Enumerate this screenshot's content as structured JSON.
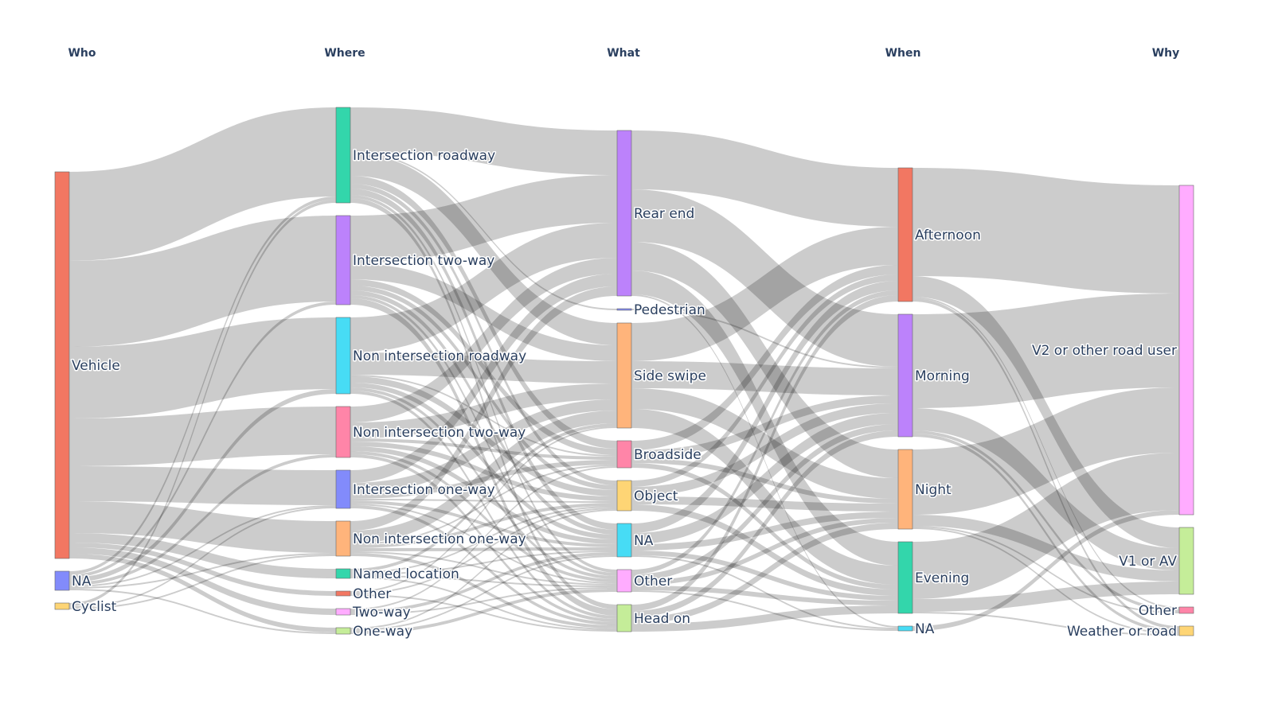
{
  "chart_data": {
    "type": "sankey",
    "title": "",
    "columns": [
      "Who",
      "Where",
      "What",
      "When",
      "Why"
    ],
    "nodes": [
      {
        "id": "who_vehicle",
        "label": "Vehicle",
        "col": 0,
        "color": "#EF553B"
      },
      {
        "id": "who_na",
        "label": "NA",
        "col": 0,
        "color": "#636efa"
      },
      {
        "id": "who_cyclist",
        "label": "Cyclist",
        "col": 0,
        "color": "#FECB52"
      },
      {
        "id": "wh_ir",
        "label": "Intersection roadway",
        "col": 1,
        "color": "#00cc96"
      },
      {
        "id": "wh_it",
        "label": "Intersection two-way",
        "col": 1,
        "color": "#ab63fa"
      },
      {
        "id": "wh_nr",
        "label": "Non intersection roadway",
        "col": 1,
        "color": "#19d3f3"
      },
      {
        "id": "wh_nt",
        "label": "Non intersection two-way",
        "col": 1,
        "color": "#FF6692"
      },
      {
        "id": "wh_io",
        "label": "Intersection one-way",
        "col": 1,
        "color": "#636efa"
      },
      {
        "id": "wh_no",
        "label": "Non intersection one-way",
        "col": 1,
        "color": "#FFA15A"
      },
      {
        "id": "wh_named",
        "label": "Named location",
        "col": 1,
        "color": "#00cc96"
      },
      {
        "id": "wh_other",
        "label": "Other",
        "col": 1,
        "color": "#EF553B"
      },
      {
        "id": "wh_twoway",
        "label": "Two-way",
        "col": 1,
        "color": "#FF97FF"
      },
      {
        "id": "wh_oneway",
        "label": "One-way",
        "col": 1,
        "color": "#B6E880"
      },
      {
        "id": "wt_re",
        "label": "Rear end",
        "col": 2,
        "color": "#ab63fa"
      },
      {
        "id": "wt_ped",
        "label": "Pedestrian",
        "col": 2,
        "color": "#636efa"
      },
      {
        "id": "wt_ss",
        "label": "Side swipe",
        "col": 2,
        "color": "#FFA15A"
      },
      {
        "id": "wt_bs",
        "label": "Broadside",
        "col": 2,
        "color": "#FF6692"
      },
      {
        "id": "wt_obj",
        "label": "Object",
        "col": 2,
        "color": "#FECB52"
      },
      {
        "id": "wt_na",
        "label": "NA",
        "col": 2,
        "color": "#19d3f3"
      },
      {
        "id": "wt_oth",
        "label": "Other",
        "col": 2,
        "color": "#FF97FF"
      },
      {
        "id": "wt_ho",
        "label": "Head on",
        "col": 2,
        "color": "#B6E880"
      },
      {
        "id": "wn_aft",
        "label": "Afternoon",
        "col": 3,
        "color": "#EF553B"
      },
      {
        "id": "wn_mor",
        "label": "Morning",
        "col": 3,
        "color": "#ab63fa"
      },
      {
        "id": "wn_night",
        "label": "Night",
        "col": 3,
        "color": "#FFA15A"
      },
      {
        "id": "wn_eve",
        "label": "Evening",
        "col": 3,
        "color": "#00cc96"
      },
      {
        "id": "wn_na",
        "label": "NA",
        "col": 3,
        "color": "#19d3f3"
      },
      {
        "id": "wy_v2",
        "label": "V2 or other road user",
        "col": 4,
        "color": "#FF97FF"
      },
      {
        "id": "wy_v1",
        "label": "V1 or AV",
        "col": 4,
        "color": "#B6E880"
      },
      {
        "id": "wy_other",
        "label": "Other",
        "col": 4,
        "color": "#FF6692"
      },
      {
        "id": "wy_weather",
        "label": "Weather or road",
        "col": 4,
        "color": "#FECB52"
      }
    ],
    "links": [
      [
        "who_vehicle",
        "wh_ir",
        56
      ],
      [
        "who_vehicle",
        "wh_it",
        54
      ],
      [
        "who_vehicle",
        "wh_nr",
        45
      ],
      [
        "who_vehicle",
        "wh_nt",
        30
      ],
      [
        "who_vehicle",
        "wh_io",
        22
      ],
      [
        "who_vehicle",
        "wh_no",
        20
      ],
      [
        "who_vehicle",
        "wh_named",
        6
      ],
      [
        "who_vehicle",
        "wh_other",
        3
      ],
      [
        "who_vehicle",
        "wh_twoway",
        4
      ],
      [
        "who_vehicle",
        "wh_oneway",
        3
      ],
      [
        "who_na",
        "wh_ir",
        2
      ],
      [
        "who_na",
        "wh_it",
        2
      ],
      [
        "who_na",
        "wh_nr",
        3
      ],
      [
        "who_na",
        "wh_nt",
        2
      ],
      [
        "who_na",
        "wh_io",
        1
      ],
      [
        "who_na",
        "wh_no",
        1
      ],
      [
        "who_na",
        "wh_oneway",
        1
      ],
      [
        "who_cyclist",
        "wh_ir",
        2
      ],
      [
        "who_cyclist",
        "wh_io",
        1
      ],
      [
        "who_cyclist",
        "wh_no",
        1
      ],
      [
        "wh_ir",
        "wt_re",
        28
      ],
      [
        "wh_ir",
        "wt_ped",
        1
      ],
      [
        "wh_ir",
        "wt_ss",
        14
      ],
      [
        "wh_ir",
        "wt_bs",
        5
      ],
      [
        "wh_ir",
        "wt_obj",
        3
      ],
      [
        "wh_ir",
        "wt_na",
        4
      ],
      [
        "wh_ir",
        "wt_oth",
        2
      ],
      [
        "wh_ir",
        "wt_ho",
        3
      ],
      [
        "wh_it",
        "wt_re",
        30
      ],
      [
        "wh_it",
        "wt_ss",
        10
      ],
      [
        "wh_it",
        "wt_bs",
        4
      ],
      [
        "wh_it",
        "wt_obj",
        3
      ],
      [
        "wh_it",
        "wt_na",
        3
      ],
      [
        "wh_it",
        "wt_oth",
        2
      ],
      [
        "wh_it",
        "wt_ho",
        4
      ],
      [
        "wh_nr",
        "wt_re",
        22
      ],
      [
        "wh_nr",
        "wt_ss",
        14
      ],
      [
        "wh_nr",
        "wt_bs",
        1
      ],
      [
        "wh_nr",
        "wt_obj",
        4
      ],
      [
        "wh_nr",
        "wt_na",
        3
      ],
      [
        "wh_nr",
        "wt_oth",
        2
      ],
      [
        "wh_nr",
        "wt_ho",
        2
      ],
      [
        "wh_nt",
        "wt_re",
        10
      ],
      [
        "wh_nt",
        "wt_ss",
        10
      ],
      [
        "wh_nt",
        "wt_bs",
        2
      ],
      [
        "wh_nt",
        "wt_obj",
        3
      ],
      [
        "wh_nt",
        "wt_na",
        3
      ],
      [
        "wh_nt",
        "wt_oth",
        2
      ],
      [
        "wh_nt",
        "wt_ho",
        2
      ],
      [
        "wh_io",
        "wt_re",
        8
      ],
      [
        "wh_io",
        "wt_ss",
        7
      ],
      [
        "wh_io",
        "wt_bs",
        3
      ],
      [
        "wh_io",
        "wt_obj",
        1
      ],
      [
        "wh_io",
        "wt_na",
        2
      ],
      [
        "wh_io",
        "wt_oth",
        1
      ],
      [
        "wh_io",
        "wt_ho",
        2
      ],
      [
        "wh_no",
        "wt_re",
        6
      ],
      [
        "wh_no",
        "wt_ss",
        8
      ],
      [
        "wh_no",
        "wt_bs",
        1
      ],
      [
        "wh_no",
        "wt_obj",
        2
      ],
      [
        "wh_no",
        "wt_na",
        2
      ],
      [
        "wh_no",
        "wt_oth",
        1
      ],
      [
        "wh_no",
        "wt_ho",
        2
      ],
      [
        "wh_named",
        "wt_ss",
        2
      ],
      [
        "wh_named",
        "wt_obj",
        1
      ],
      [
        "wh_named",
        "wt_na",
        1
      ],
      [
        "wh_named",
        "wt_oth",
        1
      ],
      [
        "wh_named",
        "wt_ho",
        1
      ],
      [
        "wh_other",
        "wt_ss",
        1
      ],
      [
        "wh_other",
        "wt_obj",
        1
      ],
      [
        "wh_other",
        "wt_ho",
        1
      ],
      [
        "wh_twoway",
        "wt_bs",
        1
      ],
      [
        "wh_twoway",
        "wt_na",
        2
      ],
      [
        "wh_twoway",
        "wt_oth",
        1
      ],
      [
        "wh_oneway",
        "wt_obj",
        1
      ],
      [
        "wh_oneway",
        "wt_na",
        1
      ],
      [
        "wh_oneway",
        "wt_oth",
        2
      ],
      [
        "wt_re",
        "wn_aft",
        37
      ],
      [
        "wt_re",
        "wn_mor",
        33
      ],
      [
        "wt_re",
        "wn_night",
        18
      ],
      [
        "wt_re",
        "wn_eve",
        15
      ],
      [
        "wt_re",
        "wn_na",
        1
      ],
      [
        "wt_ped",
        "wn_mor",
        1
      ],
      [
        "wt_ss",
        "wn_aft",
        24
      ],
      [
        "wt_ss",
        "wn_mor",
        17
      ],
      [
        "wt_ss",
        "wn_night",
        13
      ],
      [
        "wt_ss",
        "wn_eve",
        12
      ],
      [
        "wt_bs",
        "wn_aft",
        6
      ],
      [
        "wt_bs",
        "wn_mor",
        5
      ],
      [
        "wt_bs",
        "wn_night",
        3
      ],
      [
        "wt_bs",
        "wn_eve",
        3
      ],
      [
        "wt_obj",
        "wn_aft",
        4
      ],
      [
        "wt_obj",
        "wn_mor",
        6
      ],
      [
        "wt_obj",
        "wn_night",
        5
      ],
      [
        "wt_obj",
        "wn_eve",
        4
      ],
      [
        "wt_na",
        "wn_aft",
        6
      ],
      [
        "wt_na",
        "wn_mor",
        7
      ],
      [
        "wt_na",
        "wn_night",
        4
      ],
      [
        "wt_na",
        "wn_eve",
        3
      ],
      [
        "wt_na",
        "wn_na",
        1
      ],
      [
        "wt_oth",
        "wn_aft",
        3
      ],
      [
        "wt_oth",
        "wn_mor",
        4
      ],
      [
        "wt_oth",
        "wn_night",
        3
      ],
      [
        "wt_oth",
        "wn_eve",
        3
      ],
      [
        "wt_oth",
        "wn_na",
        1
      ],
      [
        "wt_ho",
        "wn_aft",
        4
      ],
      [
        "wt_ho",
        "wn_mor",
        4
      ],
      [
        "wt_ho",
        "wn_night",
        4
      ],
      [
        "wt_ho",
        "wn_eve",
        5
      ],
      [
        "wn_aft",
        "wy_v2",
        68
      ],
      [
        "wn_aft",
        "wy_v1",
        13
      ],
      [
        "wn_aft",
        "wy_other",
        1
      ],
      [
        "wn_aft",
        "wy_weather",
        2
      ],
      [
        "wn_mor",
        "wy_v2",
        59
      ],
      [
        "wn_mor",
        "wy_v1",
        14
      ],
      [
        "wn_mor",
        "wy_other",
        2
      ],
      [
        "wn_mor",
        "wy_weather",
        2
      ],
      [
        "wn_night",
        "wy_v2",
        41
      ],
      [
        "wn_night",
        "wy_v1",
        7
      ],
      [
        "wn_night",
        "wy_other",
        1
      ],
      [
        "wn_night",
        "wy_weather",
        1
      ],
      [
        "wn_eve",
        "wy_v2",
        36
      ],
      [
        "wn_eve",
        "wy_v1",
        8
      ],
      [
        "wn_eve",
        "wy_weather",
        1
      ],
      [
        "wn_na",
        "wy_v2",
        3
      ]
    ],
    "link_color": "rgba(0,0,0,0.2)"
  }
}
